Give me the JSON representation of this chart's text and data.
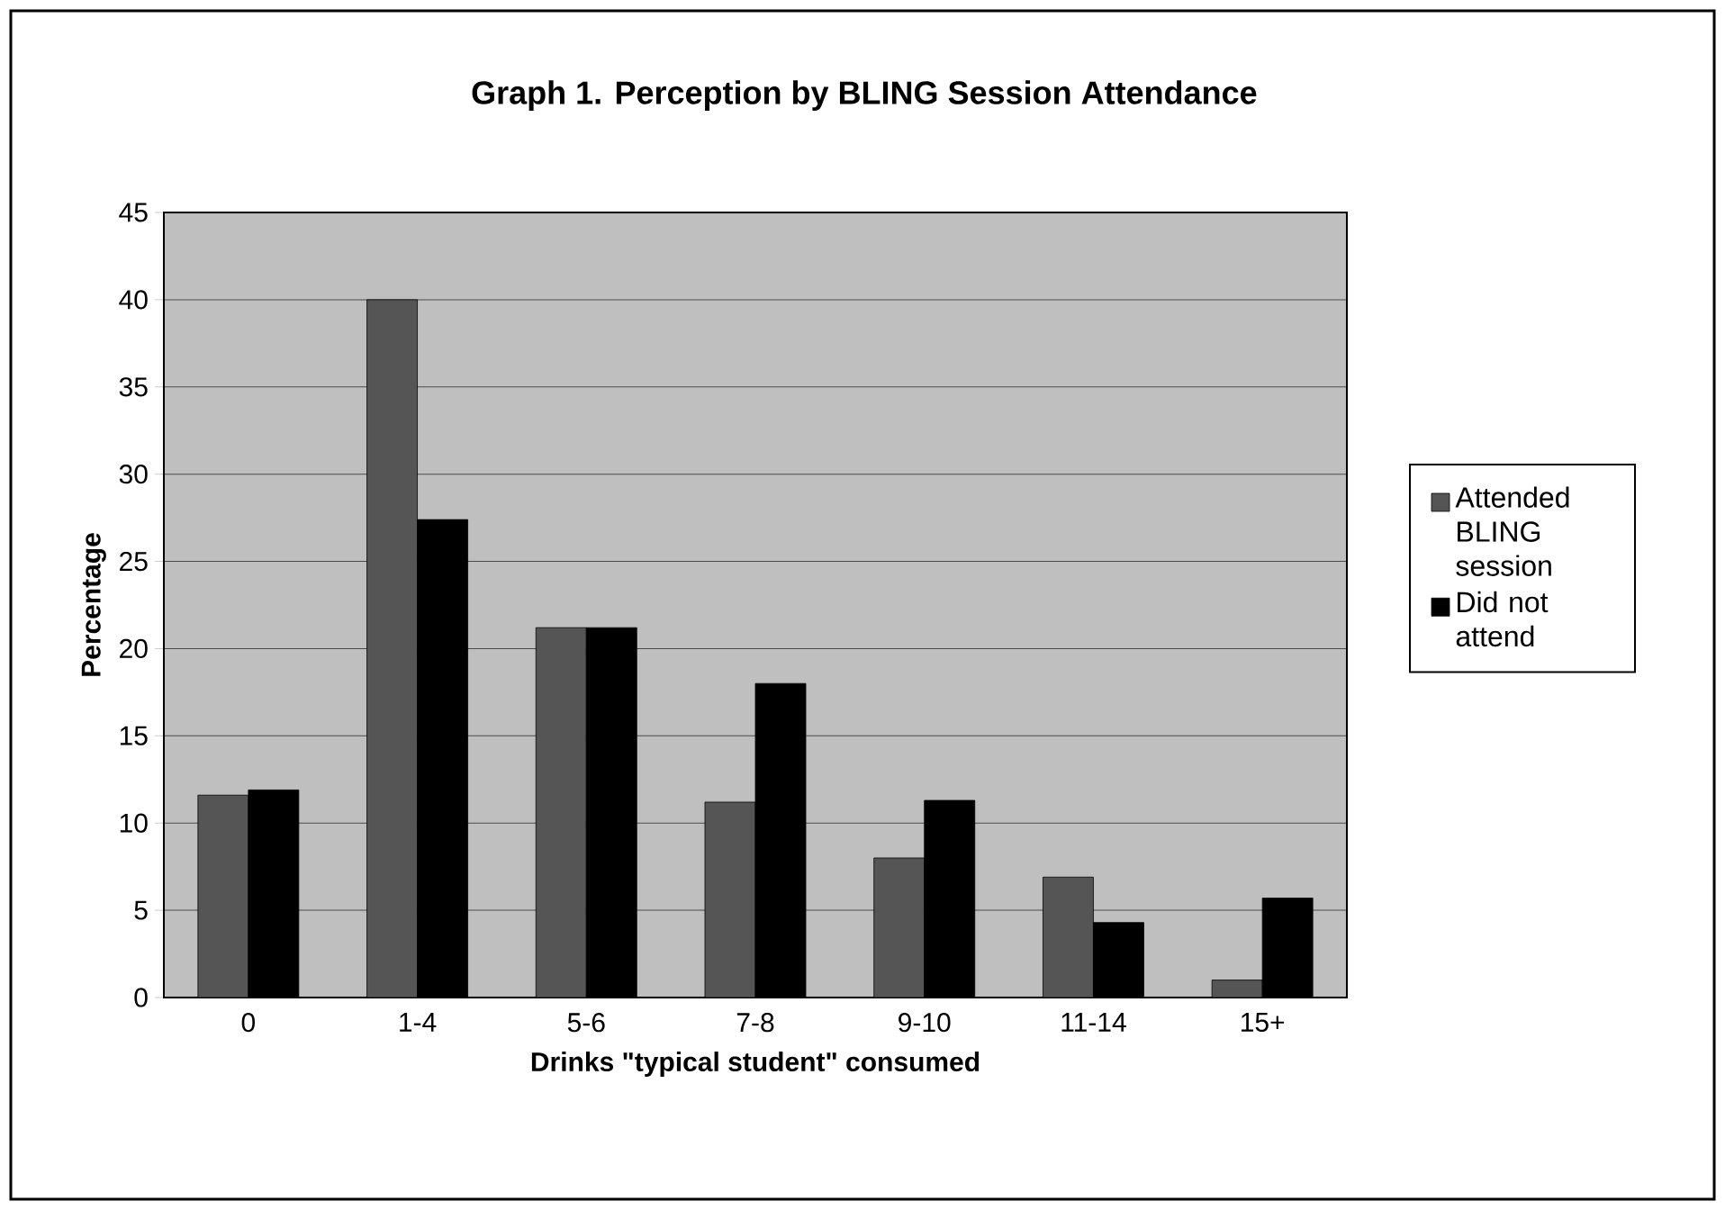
{
  "chart_data": {
    "type": "bar",
    "title": "Graph 1. Perception by BLING Session Attendance",
    "xlabel": "Drinks \"typical student\" consumed",
    "ylabel": "Percentage",
    "categories": [
      "0",
      "1-4",
      "5-6",
      "7-8",
      "9-10",
      "11-14",
      "15+"
    ],
    "series": [
      {
        "name": "Attended BLING session",
        "color": "#555555",
        "values": [
          11.6,
          40.0,
          21.2,
          11.2,
          8.0,
          6.9,
          1.0
        ]
      },
      {
        "name": "Did not attend",
        "color": "#000000",
        "values": [
          11.9,
          27.4,
          21.2,
          18.0,
          11.3,
          4.3,
          5.7
        ]
      }
    ],
    "ylim": [
      0,
      45
    ],
    "yticks": [
      0,
      5,
      10,
      15,
      20,
      25,
      30,
      35,
      40,
      45
    ],
    "grid": "y",
    "legend": "right"
  }
}
